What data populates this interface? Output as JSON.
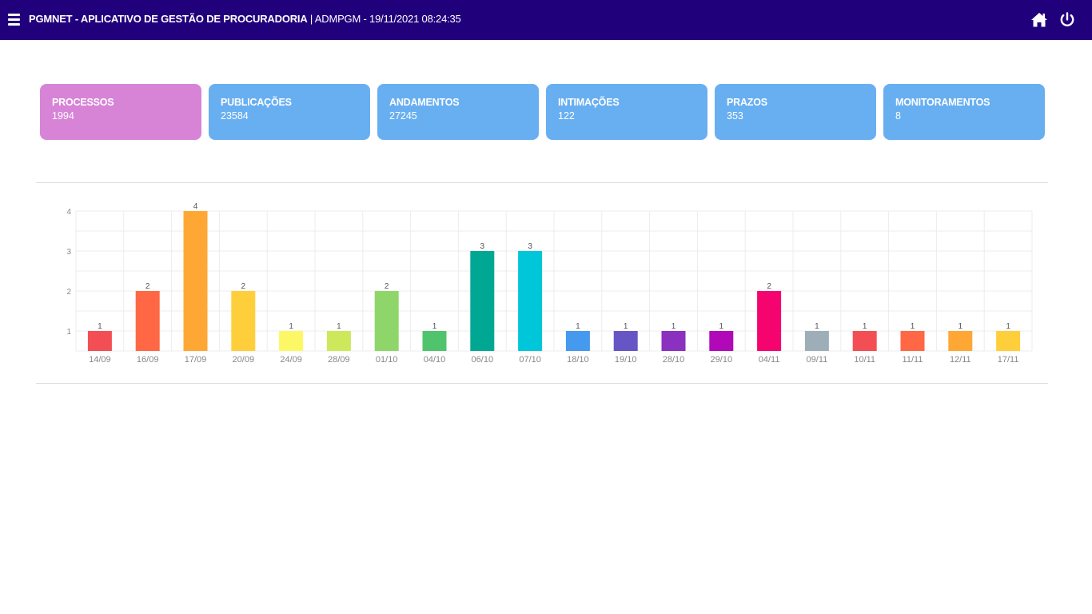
{
  "header": {
    "app_name": "PGMNET - APLICATIVO DE GESTÃO DE PROCURADORIA",
    "user_info": " | ADMPGM - 19/11/2021 08:24:35",
    "bg_color": "#21007c",
    "icons": {
      "menu": "hamburger-menu-icon",
      "home": "home-icon",
      "power": "power-icon"
    }
  },
  "cards": [
    {
      "label": "PROCESSOS",
      "value": "1994",
      "color": "#d784d6"
    },
    {
      "label": "PUBLICAÇÕES",
      "value": "23584",
      "color": "#68aff1"
    },
    {
      "label": "ANDAMENTOS",
      "value": "27245",
      "color": "#68aff1"
    },
    {
      "label": "INTIMAÇÕES",
      "value": "122",
      "color": "#68aff1"
    },
    {
      "label": "PRAZOS",
      "value": "353",
      "color": "#68aff1"
    },
    {
      "label": "MONITORAMENTOS",
      "value": "8",
      "color": "#68aff1"
    }
  ],
  "chart_data": {
    "type": "bar",
    "categories": [
      "14/09",
      "16/09",
      "17/09",
      "20/09",
      "24/09",
      "28/09",
      "01/10",
      "04/10",
      "06/10",
      "07/10",
      "18/10",
      "19/10",
      "28/10",
      "29/10",
      "04/11",
      "09/11",
      "10/11",
      "11/11",
      "12/11",
      "17/11"
    ],
    "values": [
      1,
      2,
      4,
      2,
      1,
      1,
      2,
      1,
      3,
      3,
      1,
      1,
      1,
      1,
      2,
      1,
      1,
      1,
      1,
      1
    ],
    "colors": [
      "#f44e55",
      "#ff6745",
      "#ffa734",
      "#ffcf3b",
      "#fcf865",
      "#cee85c",
      "#8fd66a",
      "#4fc46d",
      "#00a894",
      "#00c6d9",
      "#4599ef",
      "#6656c5",
      "#8a31bf",
      "#b108b8",
      "#f5036f",
      "#9eaeb8",
      "#f44e55",
      "#ff6745",
      "#ffa734",
      "#ffcf3b"
    ],
    "yticks": [
      1,
      2,
      3,
      4
    ],
    "ylim": [
      0.5,
      4
    ],
    "data_labels": true,
    "grid": true,
    "legend": "none"
  }
}
